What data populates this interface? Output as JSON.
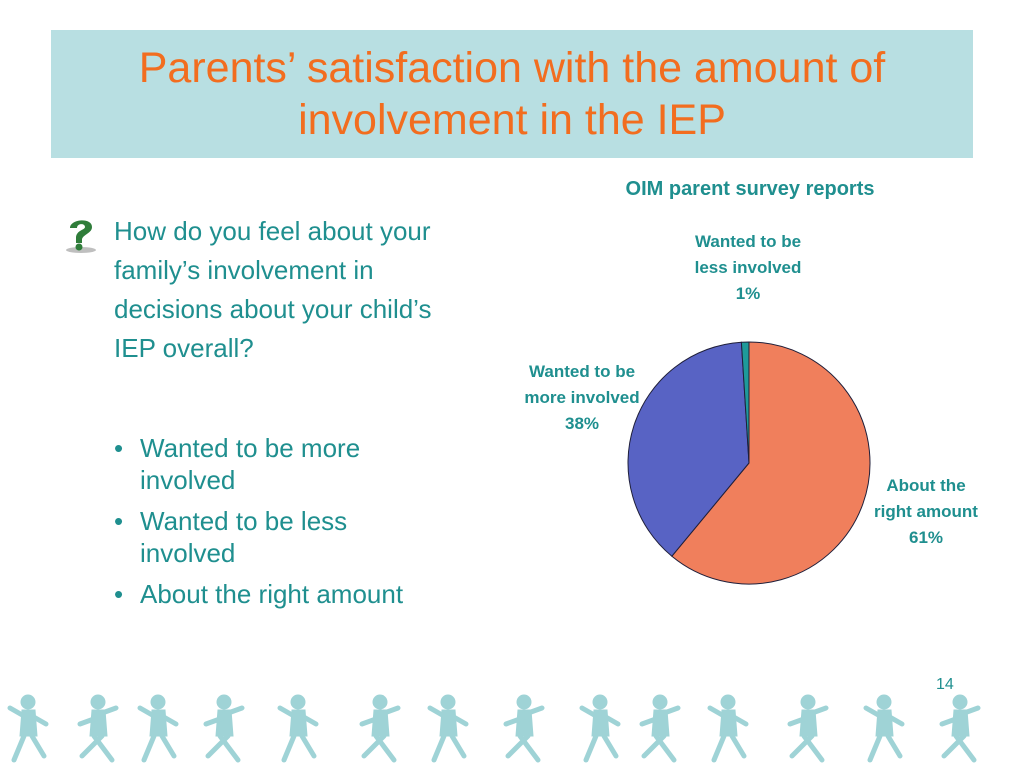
{
  "slide": {
    "title": "Parents’ satisfaction with the amount of involvement in the IEP",
    "question": "How do you feel about your family’s involvement in decisions about your child’s IEP overall?",
    "bullets": [
      "Wanted to be more involved",
      "Wanted to be less involved",
      "About the right amount"
    ],
    "bullet_char": "•",
    "page_number": "14",
    "question_icon": "question-mark-icon",
    "footer_decoration": "running-children-silhouettes"
  },
  "colors": {
    "title_text": "#f26d1f",
    "title_background": "#b8dfe2",
    "body_text": "#1f8f8f",
    "silhouettes": "#9fd3d6"
  },
  "chart_data": {
    "type": "pie",
    "title": "OIM parent survey reports",
    "slices": [
      {
        "label": "About the right amount",
        "value": 61,
        "value_label": "61%",
        "color": "#f07f5c"
      },
      {
        "label": "Wanted to be more involved",
        "value": 38,
        "value_label": "38%",
        "color": "#5863c4"
      },
      {
        "label": "Wanted to be less involved",
        "value": 1,
        "value_label": "1%",
        "color": "#1e9a9a"
      }
    ],
    "start": "12 o'clock",
    "direction": "clockwise"
  }
}
